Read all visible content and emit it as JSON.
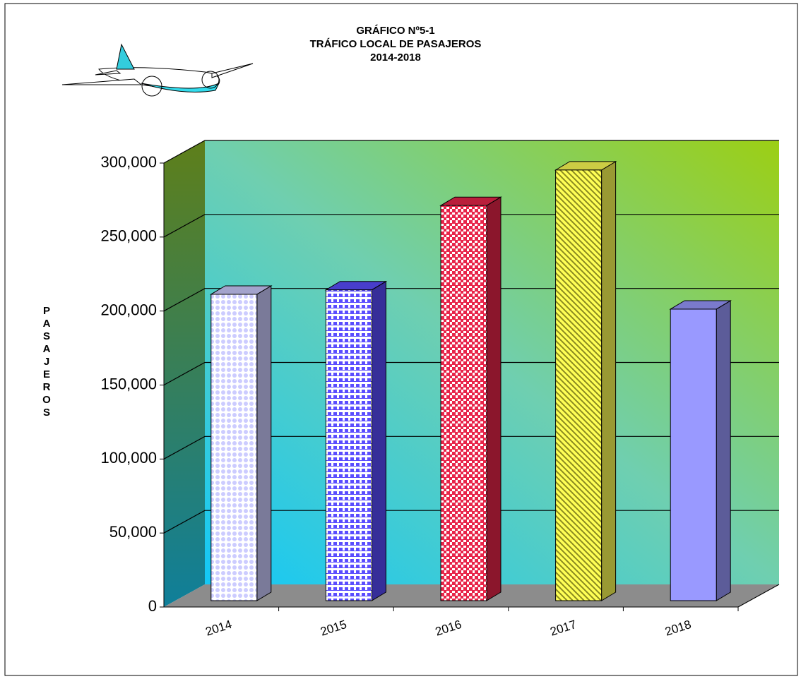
{
  "chart_data": {
    "type": "bar3d",
    "title": "GRÁFICO Nº5-1",
    "subtitle": "TRÁFICO LOCAL DE PASAJEROS",
    "period": "2014-2018",
    "y_label": "PASAJEROS",
    "categories": [
      "2014",
      "2015",
      "2016",
      "2017",
      "2018"
    ],
    "values": [
      207000,
      210000,
      267000,
      291000,
      197000
    ],
    "colors": [
      "#ccccff",
      "#5a4dff",
      "#e8254a",
      "#ffff55",
      "#9999ff"
    ],
    "ylim": [
      0,
      300000
    ],
    "yticks": [
      0,
      {
        "value": 50000,
        "label": "50,000"
      },
      {
        "value": 100000,
        "label": "100,000"
      },
      {
        "value": 150000,
        "label": "150,000"
      },
      {
        "value": 200000,
        "label": "200,000"
      },
      {
        "value": 250000,
        "label": "250,000"
      },
      {
        "value": 300000,
        "label": "300,000"
      }
    ],
    "grid": true
  }
}
